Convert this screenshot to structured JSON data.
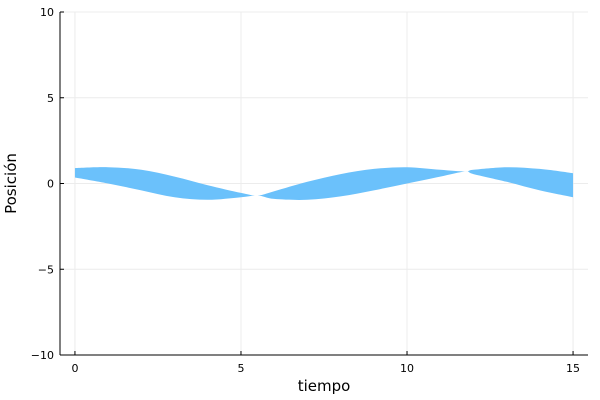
{
  "chart_data": {
    "type": "area",
    "title": "",
    "xlabel": "tiempo",
    "ylabel": "Posición",
    "xlim": [
      -0.45,
      15.45
    ],
    "ylim": [
      -10,
      10
    ],
    "xticks": [
      0,
      5,
      10,
      15
    ],
    "yticks": [
      -10,
      -5,
      0,
      5,
      10
    ],
    "xtick_labels": [
      "0",
      "5",
      "10",
      "15"
    ],
    "ytick_labels": [
      "−10",
      "−5",
      "0",
      "5",
      "10"
    ],
    "grid": true,
    "legend": "none",
    "fill_color": "#6bc1fb",
    "band": {
      "x": [
        0,
        1,
        2,
        3,
        4,
        5,
        5.5,
        6,
        7,
        8,
        9,
        10,
        11,
        11.75,
        12,
        13,
        14,
        15
      ],
      "upper": [
        0.9,
        0.95,
        0.8,
        0.4,
        -0.1,
        -0.55,
        -0.7,
        -0.45,
        0.1,
        0.55,
        0.85,
        0.95,
        0.8,
        0.7,
        0.8,
        0.95,
        0.85,
        0.6
      ],
      "lower": [
        0.35,
        0.0,
        -0.4,
        -0.8,
        -0.95,
        -0.8,
        -0.7,
        -0.9,
        -0.95,
        -0.75,
        -0.4,
        0.0,
        0.4,
        0.7,
        0.55,
        0.1,
        -0.4,
        -0.8
      ]
    }
  }
}
